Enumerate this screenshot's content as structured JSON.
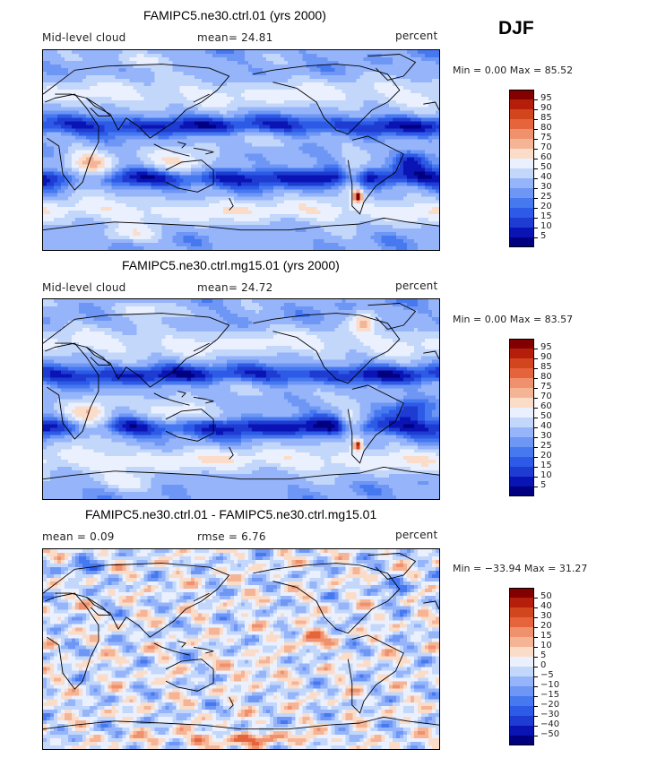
{
  "season": "DJF",
  "panels": [
    {
      "title": "FAMIPC5.ne30.ctrl.01 (yrs 2000)",
      "left_label": "Mid-level cloud",
      "center_label": "mean=  24.81",
      "right_label": "percent",
      "minmax": "Min =   0.00 Max =  85.52"
    },
    {
      "title": "FAMIPC5.ne30.ctrl.mg15.01 (yrs 2000)",
      "left_label": "Mid-level cloud",
      "center_label": "mean=  24.72",
      "right_label": "percent",
      "minmax": "Min =   0.00 Max =  83.57"
    },
    {
      "title": "FAMIPC5.ne30.ctrl.01 - FAMIPC5.ne30.ctrl.mg15.01",
      "left_label": "mean =   0.09",
      "center_label": "rmse =   6.76",
      "right_label": "percent",
      "minmax": "Min = −33.94 Max =  31.27"
    }
  ],
  "chart_data": [
    {
      "type": "heatmap",
      "title": "FAMIPC5.ne30.ctrl.01 (yrs 2000)",
      "variable": "Mid-level cloud",
      "units": "percent",
      "mean": 24.81,
      "min": 0.0,
      "max": 85.52,
      "levels": [
        5,
        10,
        15,
        20,
        25,
        30,
        40,
        50,
        60,
        70,
        75,
        80,
        85,
        90,
        95
      ],
      "colors": [
        "#000080",
        "#0a14b4",
        "#1e3cd2",
        "#2d5ae6",
        "#4678f0",
        "#6e96f5",
        "#96b4fa",
        "#c3d7fa",
        "#ebf0ff",
        "#fadcc8",
        "#f5b496",
        "#f0916e",
        "#e6643c",
        "#d2461e",
        "#b41e0a",
        "#820000"
      ]
    },
    {
      "type": "heatmap",
      "title": "FAMIPC5.ne30.ctrl.mg15.01 (yrs 2000)",
      "variable": "Mid-level cloud",
      "units": "percent",
      "mean": 24.72,
      "min": 0.0,
      "max": 83.57,
      "levels": [
        5,
        10,
        15,
        20,
        25,
        30,
        40,
        50,
        60,
        70,
        75,
        80,
        85,
        90,
        95
      ],
      "colors": [
        "#000080",
        "#0a14b4",
        "#1e3cd2",
        "#2d5ae6",
        "#4678f0",
        "#6e96f5",
        "#96b4fa",
        "#c3d7fa",
        "#ebf0ff",
        "#fadcc8",
        "#f5b496",
        "#f0916e",
        "#e6643c",
        "#d2461e",
        "#b41e0a",
        "#820000"
      ]
    },
    {
      "type": "heatmap",
      "title": "FAMIPC5.ne30.ctrl.01 - FAMIPC5.ne30.ctrl.mg15.01",
      "units": "percent",
      "mean": 0.09,
      "rmse": 6.76,
      "min": -33.94,
      "max": 31.27,
      "levels": [
        -50,
        -40,
        -30,
        -20,
        -15,
        -10,
        -5,
        0,
        5,
        10,
        15,
        20,
        30,
        40,
        50
      ],
      "colors": [
        "#000080",
        "#0a14b4",
        "#1e3cd2",
        "#2d5ae6",
        "#4678f0",
        "#6e96f5",
        "#96b4fa",
        "#c3d7fa",
        "#ebf0ff",
        "#fadcc8",
        "#f5b496",
        "#f0916e",
        "#e6643c",
        "#d2461e",
        "#b41e0a",
        "#820000"
      ]
    }
  ]
}
